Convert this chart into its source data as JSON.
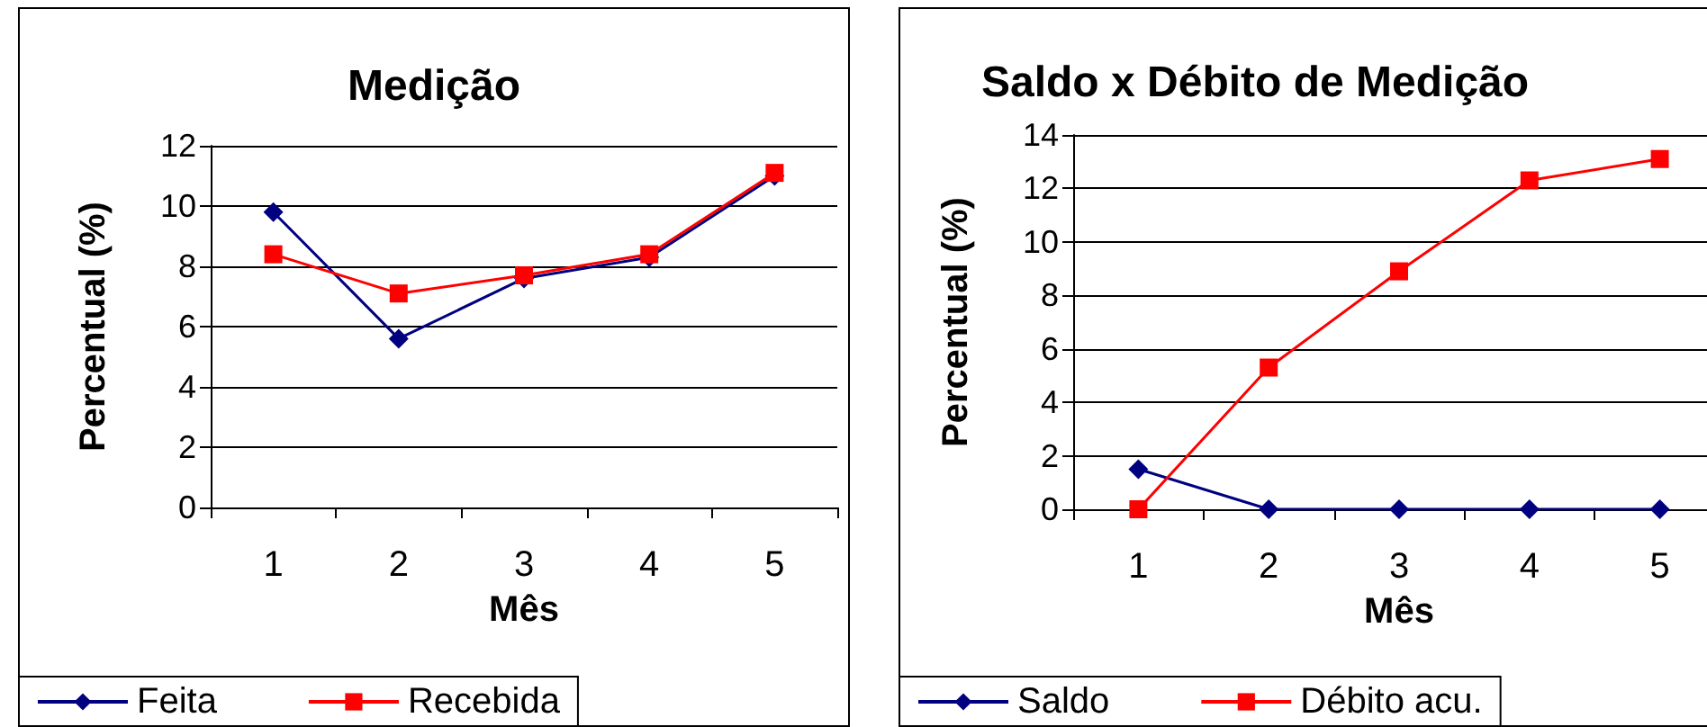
{
  "chart_data": [
    {
      "type": "line",
      "title": "Medição",
      "xlabel": "Mês",
      "ylabel": "Percentual (%)",
      "categories": [
        "1",
        "2",
        "3",
        "4",
        "5"
      ],
      "series": [
        {
          "name": "Feita",
          "color": "#000080",
          "marker": "diamond",
          "values": [
            9.8,
            5.6,
            7.6,
            8.3,
            11.0
          ]
        },
        {
          "name": "Recebida",
          "color": "#ff0000",
          "marker": "square",
          "values": [
            8.4,
            7.1,
            7.7,
            8.4,
            11.1
          ]
        }
      ],
      "ylim": [
        0,
        12
      ],
      "yticks": [
        0,
        2,
        4,
        6,
        8,
        10,
        12
      ],
      "grid": "y",
      "legend": "bottom left"
    },
    {
      "type": "line",
      "title": "Saldo x Débito de Medição",
      "xlabel": "Mês",
      "ylabel": "Percentual (%)",
      "categories": [
        "1",
        "2",
        "3",
        "4",
        "5"
      ],
      "series": [
        {
          "name": "Saldo",
          "color": "#000080",
          "marker": "diamond",
          "values": [
            1.5,
            0,
            0,
            0,
            0
          ]
        },
        {
          "name": "Débito acu.",
          "color": "#ff0000",
          "marker": "square",
          "values": [
            0,
            5.3,
            8.9,
            12.3,
            13.1
          ]
        }
      ],
      "ylim": [
        0,
        14
      ],
      "yticks": [
        0,
        2,
        4,
        6,
        8,
        10,
        12,
        14
      ],
      "grid": "y",
      "legend": "bottom left"
    }
  ]
}
